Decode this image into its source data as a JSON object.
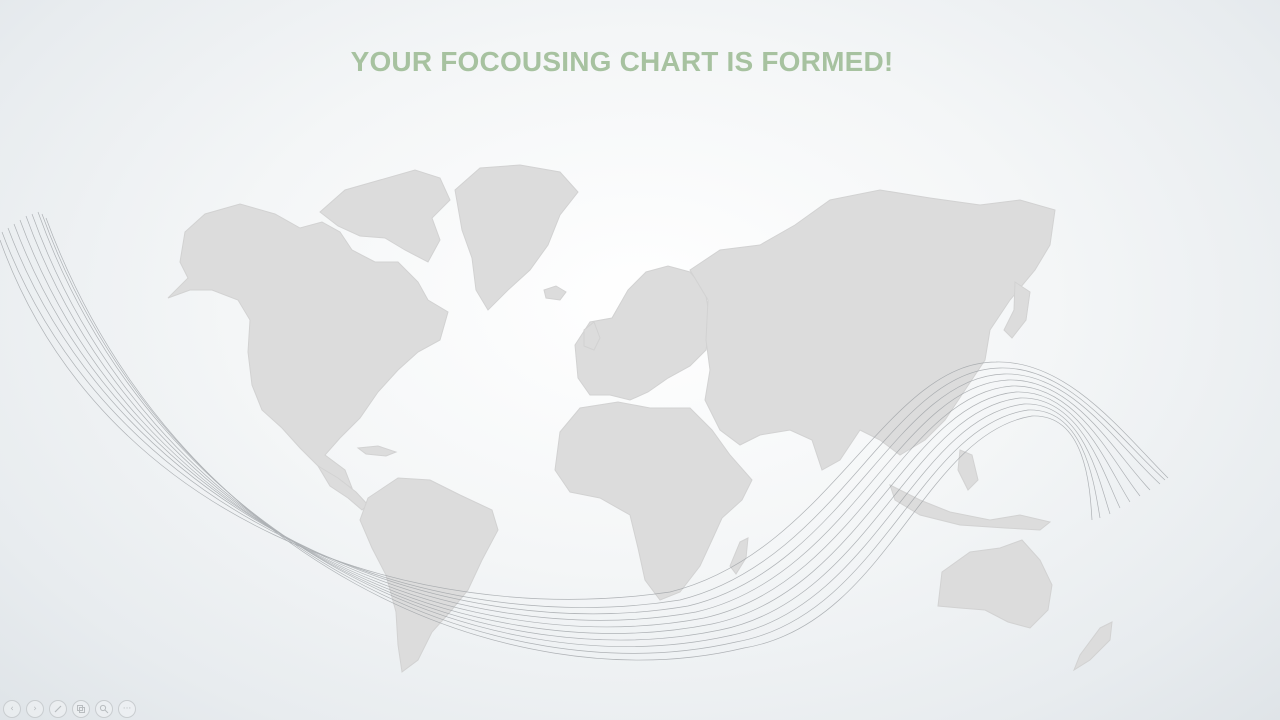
{
  "slide": {
    "title": "YOUR FOCOUSING CHART IS FORMED!"
  },
  "colors": {
    "title": "#a7c2a0",
    "land": "#dcdcdc",
    "swoosh": "#9ea2a6"
  },
  "controls": [
    {
      "name": "previous-slide-button",
      "icon": "chevron-left-icon"
    },
    {
      "name": "next-slide-button",
      "icon": "chevron-right-icon"
    },
    {
      "name": "pen-tool-button",
      "icon": "pen-icon"
    },
    {
      "name": "see-all-slides-button",
      "icon": "slides-grid-icon"
    },
    {
      "name": "zoom-button",
      "icon": "magnifier-icon"
    },
    {
      "name": "more-options-button",
      "icon": "more-dots-icon"
    }
  ]
}
